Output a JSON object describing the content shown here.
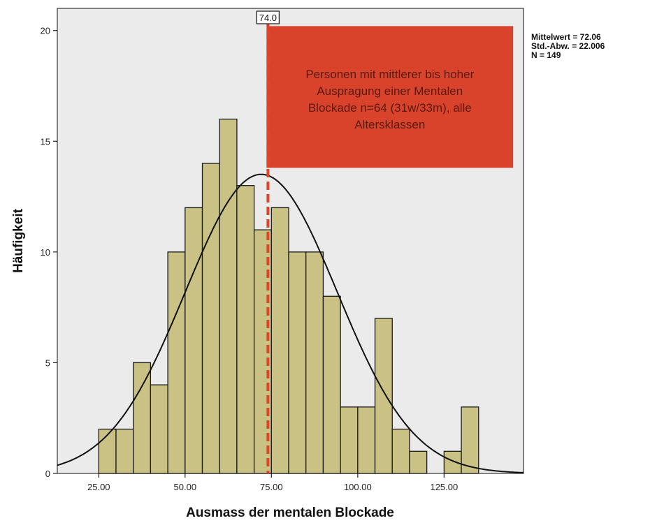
{
  "chart_data": {
    "type": "bar",
    "subtype": "histogram",
    "xlabel": "Ausmass der mentalen Blockade",
    "ylabel": "Häufigkeit",
    "xlim": [
      13,
      148
    ],
    "ylim": [
      0,
      21
    ],
    "x_ticks": [
      25,
      50,
      75,
      100,
      125
    ],
    "x_tick_labels": [
      "25.00",
      "50.00",
      "75.00",
      "100.00",
      "125.00"
    ],
    "y_ticks": [
      0,
      5,
      10,
      15,
      20
    ],
    "y_tick_labels": [
      "0",
      "5",
      "10",
      "15",
      "20"
    ],
    "bin_width": 5,
    "bins": [
      {
        "start": 25,
        "end": 30,
        "count": 2
      },
      {
        "start": 30,
        "end": 35,
        "count": 2
      },
      {
        "start": 35,
        "end": 40,
        "count": 5
      },
      {
        "start": 40,
        "end": 45,
        "count": 4
      },
      {
        "start": 45,
        "end": 50,
        "count": 10
      },
      {
        "start": 50,
        "end": 55,
        "count": 12
      },
      {
        "start": 55,
        "end": 60,
        "count": 14
      },
      {
        "start": 60,
        "end": 65,
        "count": 16
      },
      {
        "start": 65,
        "end": 70,
        "count": 13
      },
      {
        "start": 70,
        "end": 75,
        "count": 11
      },
      {
        "start": 75,
        "end": 80,
        "count": 12
      },
      {
        "start": 80,
        "end": 85,
        "count": 10
      },
      {
        "start": 85,
        "end": 90,
        "count": 10
      },
      {
        "start": 90,
        "end": 95,
        "count": 8
      },
      {
        "start": 95,
        "end": 100,
        "count": 3
      },
      {
        "start": 100,
        "end": 105,
        "count": 3
      },
      {
        "start": 105,
        "end": 110,
        "count": 7
      },
      {
        "start": 110,
        "end": 115,
        "count": 2
      },
      {
        "start": 115,
        "end": 120,
        "count": 1
      },
      {
        "start": 125,
        "end": 130,
        "count": 1
      },
      {
        "start": 130,
        "end": 135,
        "count": 3
      }
    ],
    "normal_curve": {
      "mean": 72.06,
      "sd": 22.006,
      "n": 149
    },
    "stats": [
      "Mittelwert = 72.06",
      "Std.-Abw. = 22.006",
      "N = 149"
    ],
    "cutoff": {
      "value": 74.0,
      "label": "74.0"
    },
    "annotation": {
      "lines": [
        "Personen mit mittlerer bis hoher",
        "Auspragung einer Mentalen",
        "Blockade n=64 (31w/33m), alle",
        "Altersklassen"
      ],
      "x_range": [
        74,
        145
      ],
      "y_range": [
        13.8,
        20.2
      ]
    },
    "grid": false,
    "legend": "none",
    "colors": {
      "bar_fill": "#c9c284",
      "bar_stroke": "#1a1a1a",
      "plot_background": "#ebebeb",
      "curve": "#111111",
      "cutoff_line": "#e0452a",
      "annotation_fill": "#d9432c",
      "annotation_text": "#5a1a10"
    }
  }
}
